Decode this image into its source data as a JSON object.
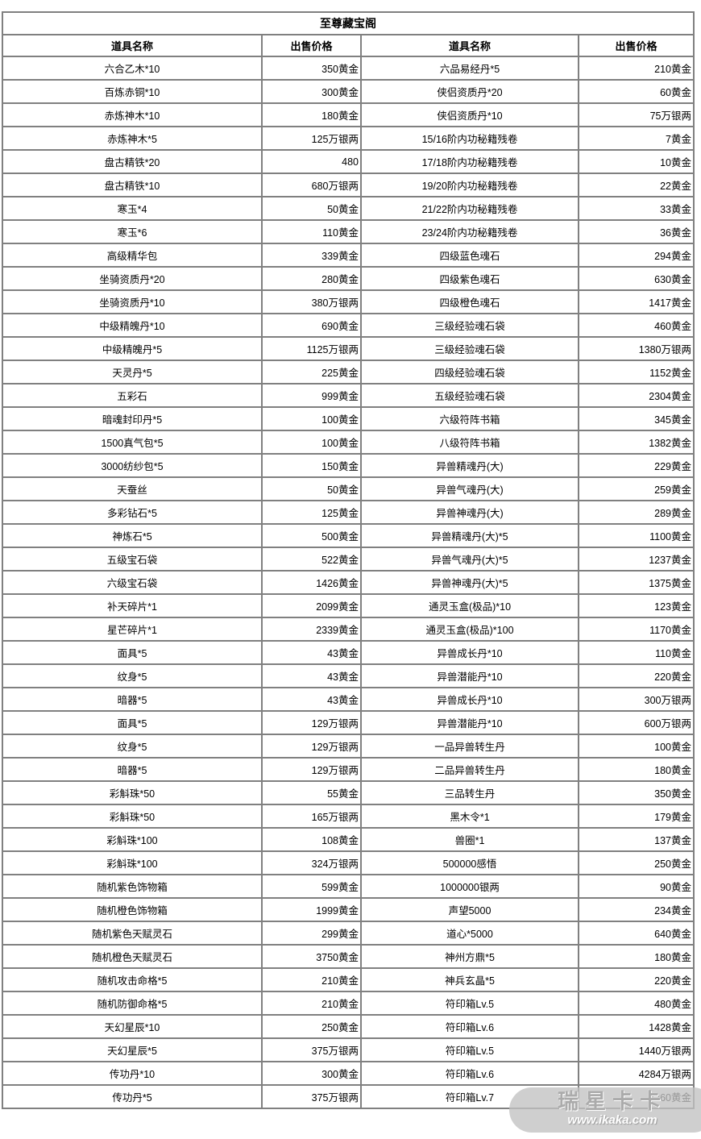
{
  "table": {
    "title": "至尊藏宝阁",
    "headers": [
      "道具名称",
      "出售价格",
      "道具名称",
      "出售价格"
    ],
    "rows": [
      [
        "六合乙木*10",
        "350黄金",
        "六品易经丹*5",
        "210黄金"
      ],
      [
        "百炼赤铜*10",
        "300黄金",
        "侠侣资质丹*20",
        "60黄金"
      ],
      [
        "赤炼神木*10",
        "180黄金",
        "侠侣资质丹*10",
        "75万银两"
      ],
      [
        "赤炼神木*5",
        "125万银两",
        "15/16阶内功秘籍残卷",
        "7黄金"
      ],
      [
        "盘古精铁*20",
        "480",
        "17/18阶内功秘籍残卷",
        "10黄金"
      ],
      [
        "盘古精铁*10",
        "680万银两",
        "19/20阶内功秘籍残卷",
        "22黄金"
      ],
      [
        "寒玉*4",
        "50黄金",
        "21/22阶内功秘籍残卷",
        "33黄金"
      ],
      [
        "寒玉*6",
        "110黄金",
        "23/24阶内功秘籍残卷",
        "36黄金"
      ],
      [
        "高级精华包",
        "339黄金",
        "四级蓝色魂石",
        "294黄金"
      ],
      [
        "坐骑资质丹*20",
        "280黄金",
        "四级紫色魂石",
        "630黄金"
      ],
      [
        "坐骑资质丹*10",
        "380万银两",
        "四级橙色魂石",
        "1417黄金"
      ],
      [
        "中级精魄丹*10",
        "690黄金",
        "三级经验魂石袋",
        "460黄金"
      ],
      [
        "中级精魄丹*5",
        "1125万银两",
        "三级经验魂石袋",
        "1380万银两"
      ],
      [
        "天灵丹*5",
        "225黄金",
        "四级经验魂石袋",
        "1152黄金"
      ],
      [
        "五彩石",
        "999黄金",
        "五级经验魂石袋",
        "2304黄金"
      ],
      [
        "暗魂封印丹*5",
        "100黄金",
        "六级符阵书箱",
        "345黄金"
      ],
      [
        "1500真气包*5",
        "100黄金",
        "八级符阵书箱",
        "1382黄金"
      ],
      [
        "3000纺纱包*5",
        "150黄金",
        "异兽精魂丹(大)",
        "229黄金"
      ],
      [
        "天蚕丝",
        "50黄金",
        "异兽气魂丹(大)",
        "259黄金"
      ],
      [
        "多彩钻石*5",
        "125黄金",
        "异兽神魂丹(大)",
        "289黄金"
      ],
      [
        "神炼石*5",
        "500黄金",
        "异兽精魂丹(大)*5",
        "1100黄金"
      ],
      [
        "五级宝石袋",
        "522黄金",
        "异兽气魂丹(大)*5",
        "1237黄金"
      ],
      [
        "六级宝石袋",
        "1426黄金",
        "异兽神魂丹(大)*5",
        "1375黄金"
      ],
      [
        "补天碎片*1",
        "2099黄金",
        "通灵玉盒(极品)*10",
        "123黄金"
      ],
      [
        "星芒碎片*1",
        "2339黄金",
        "通灵玉盒(极品)*100",
        "1170黄金"
      ],
      [
        "面具*5",
        "43黄金",
        "异兽成长丹*10",
        "110黄金"
      ],
      [
        "纹身*5",
        "43黄金",
        "异兽潜能丹*10",
        "220黄金"
      ],
      [
        "暗器*5",
        "43黄金",
        "异兽成长丹*10",
        "300万银两"
      ],
      [
        "面具*5",
        "129万银两",
        "异兽潜能丹*10",
        "600万银两"
      ],
      [
        "纹身*5",
        "129万银两",
        "一品异兽转生丹",
        "100黄金"
      ],
      [
        "暗器*5",
        "129万银两",
        "二品异兽转生丹",
        "180黄金"
      ],
      [
        "彩斛珠*50",
        "55黄金",
        "三品转生丹",
        "350黄金"
      ],
      [
        "彩斛珠*50",
        "165万银两",
        "黑木令*1",
        "179黄金"
      ],
      [
        "彩斛珠*100",
        "108黄金",
        "兽圈*1",
        "137黄金"
      ],
      [
        "彩斛珠*100",
        "324万银两",
        "500000感悟",
        "250黄金"
      ],
      [
        "随机紫色饰物箱",
        "599黄金",
        "1000000银两",
        "90黄金"
      ],
      [
        "随机橙色饰物箱",
        "1999黄金",
        "声望5000",
        "234黄金"
      ],
      [
        "随机紫色天赋灵石",
        "299黄金",
        "道心*5000",
        "640黄金"
      ],
      [
        "随机橙色天赋灵石",
        "3750黄金",
        "神州方鼎*5",
        "180黄金"
      ],
      [
        "随机攻击命格*5",
        "210黄金",
        "神兵玄晶*5",
        "220黄金"
      ],
      [
        "随机防御命格*5",
        "210黄金",
        "符印箱Lv.5",
        "480黄金"
      ],
      [
        "天幻星辰*10",
        "250黄金",
        "符印箱Lv.6",
        "1428黄金"
      ],
      [
        "天幻星辰*5",
        "375万银两",
        "符印箱Lv.5",
        "1440万银两"
      ],
      [
        "传功丹*10",
        "300黄金",
        "符印箱Lv.6",
        "4284万银两"
      ],
      [
        "传功丹*5",
        "375万银两",
        "符印箱Lv.7",
        "4260黄金"
      ]
    ]
  },
  "watermark": {
    "brand": "瑞星卡卡",
    "url": "www.ikaka.com"
  },
  "colors": {
    "table_border": "#808080",
    "text": "#000000",
    "watermark_bg": "#c1c1c1",
    "watermark_url_text": "#ffffff"
  }
}
